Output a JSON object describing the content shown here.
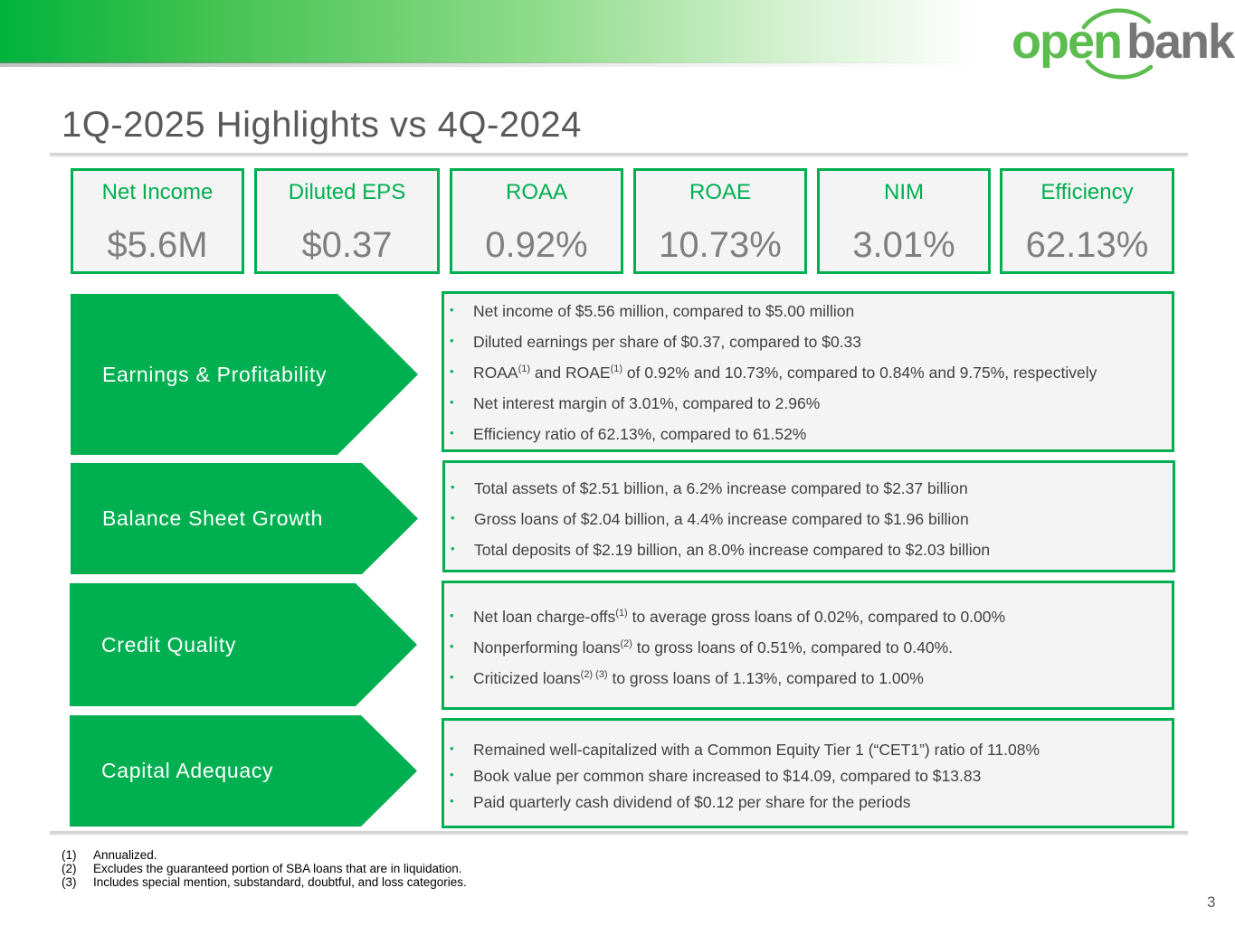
{
  "brand": {
    "logo_part1": "open",
    "logo_part2": "bank",
    "primary_color": "#00b050",
    "logo_green": "#5cbd4e",
    "logo_gray": "#777777"
  },
  "title": "1Q-2025 Highlights vs 4Q-2024",
  "kpis": [
    {
      "label": "Net Income",
      "value": "$5.6M"
    },
    {
      "label": "Diluted EPS",
      "value": "$0.37"
    },
    {
      "label": "ROAA",
      "value": "0.92%"
    },
    {
      "label": "ROAE",
      "value": "10.73%"
    },
    {
      "label": "NIM",
      "value": "3.01%"
    },
    {
      "label": "Efficiency",
      "value": "62.13%"
    }
  ],
  "sections": [
    {
      "label": "Earnings & Profitability",
      "bullets": [
        {
          "parts": [
            "Net income of $5.56 million, compared to $5.00 million"
          ]
        },
        {
          "parts": [
            "Diluted earnings per share of $0.37, compared to $0.33"
          ]
        },
        {
          "parts": [
            "ROAA",
            "(1)",
            " and ROAE",
            "(1)",
            " of 0.92% and 10.73%, compared to 0.84% and 9.75%, respectively"
          ]
        },
        {
          "parts": [
            "Net interest margin of 3.01%, compared to 2.96%"
          ]
        },
        {
          "parts": [
            "Efficiency ratio of 62.13%, compared to 61.52%"
          ]
        }
      ]
    },
    {
      "label": "Balance Sheet Growth",
      "bullets": [
        {
          "parts": [
            "Total assets of $2.51 billion, a 6.2% increase compared to $2.37 billion"
          ]
        },
        {
          "parts": [
            "Gross loans of $2.04 billion, a 4.4% increase compared to $1.96 billion"
          ]
        },
        {
          "parts": [
            "Total deposits of $2.19 billion, an 8.0% increase compared to $2.03 billion"
          ]
        }
      ]
    },
    {
      "label": "Credit Quality",
      "bullets": [
        {
          "parts": [
            "Net loan charge-offs",
            "(1)",
            " to average gross loans of 0.02%, compared to 0.00%"
          ]
        },
        {
          "parts": [
            "Nonperforming loans",
            "(2)",
            " to gross loans of 0.51%, compared to 0.40%."
          ]
        },
        {
          "parts": [
            "Criticized loans",
            "(2) (3)",
            " to gross loans of 1.13%, compared to 1.00%"
          ]
        }
      ]
    },
    {
      "label": "Capital Adequacy",
      "bullets": [
        {
          "parts": [
            "Remained well-capitalized with a Common Equity Tier 1 (“CET1”) ratio of 11.08%"
          ]
        },
        {
          "parts": [
            "Book value per common share increased to $14.09, compared to $13.83"
          ]
        },
        {
          "parts": [
            "Paid quarterly cash dividend of $0.12 per share for the periods"
          ]
        }
      ]
    }
  ],
  "bullet_glyph": "•",
  "footnotes": [
    {
      "num": "(1)",
      "text": "Annualized."
    },
    {
      "num": "(2)",
      "text": "Excludes the guaranteed portion of SBA loans that are in liquidation."
    },
    {
      "num": "(3)",
      "text": "Includes special mention, substandard, doubtful, and loss categories."
    }
  ],
  "page_number": "3"
}
